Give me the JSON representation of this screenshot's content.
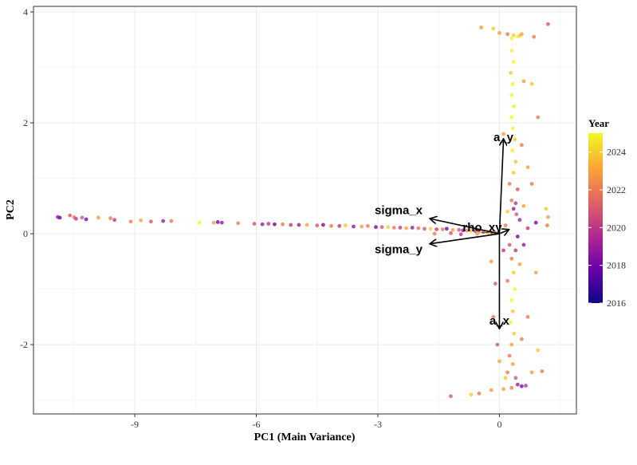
{
  "chart_data": {
    "type": "scatter",
    "title": "",
    "xlabel": "PC1 (Main Variance)",
    "ylabel": "PC2",
    "xlim": [
      -11.5,
      1.9
    ],
    "ylim": [
      -3.25,
      4.1
    ],
    "x_ticks": [
      -9,
      -6,
      -3,
      0
    ],
    "x_tick_labels": [
      "-9",
      "-6",
      "-3",
      "0"
    ],
    "y_ticks": [
      -2,
      0,
      2,
      4
    ],
    "y_tick_labels": [
      "-2",
      "0",
      "2",
      "4"
    ],
    "grid": true,
    "legend": {
      "title": "Year",
      "placement": "right",
      "range": [
        2016,
        2025
      ],
      "ticks": [
        2016,
        2018,
        2020,
        2022,
        2024
      ],
      "tick_labels": [
        "2016",
        "2018",
        "2020",
        "2022",
        "2024"
      ],
      "colors": [
        "#0d0887",
        "#6a00a8",
        "#b12a90",
        "#e16462",
        "#fca636",
        "#f0f921"
      ]
    },
    "loadings": [
      {
        "name": "sigma_x",
        "x": -1.7,
        "y": 0.27
      },
      {
        "name": "sigma_y",
        "x": -1.7,
        "y": -0.18
      },
      {
        "name": "rho_xy",
        "x": 0.22,
        "y": 0.07
      },
      {
        "name": "a_y",
        "x": 0.1,
        "y": 1.7
      },
      {
        "name": "a_x",
        "x": 0.0,
        "y": -1.7
      }
    ],
    "points": {
      "horizontal_band": [
        [
          -10.9,
          0.3,
          2019
        ],
        [
          -10.85,
          0.29,
          2018
        ],
        [
          -10.6,
          0.33,
          2021
        ],
        [
          -10.5,
          0.3,
          2022
        ],
        [
          -10.45,
          0.27,
          2020
        ],
        [
          -10.3,
          0.29,
          2021
        ],
        [
          -10.2,
          0.26,
          2018
        ],
        [
          -9.9,
          0.29,
          2023
        ],
        [
          -9.6,
          0.28,
          2022
        ],
        [
          -9.5,
          0.25,
          2020
        ],
        [
          -9.1,
          0.22,
          2022
        ],
        [
          -8.85,
          0.24,
          2023
        ],
        [
          -8.6,
          0.22,
          2021
        ],
        [
          -8.3,
          0.23,
          2019
        ],
        [
          -8.1,
          0.23,
          2022
        ],
        [
          -7.4,
          0.2,
          2025
        ],
        [
          -7.05,
          0.2,
          2023
        ],
        [
          -6.95,
          0.21,
          2018
        ],
        [
          -6.85,
          0.2,
          2019
        ],
        [
          -6.45,
          0.19,
          2022
        ],
        [
          -6.05,
          0.18,
          2021
        ],
        [
          -5.85,
          0.17,
          2019
        ],
        [
          -5.7,
          0.18,
          2020
        ],
        [
          -5.55,
          0.17,
          2018
        ],
        [
          -5.35,
          0.17,
          2022
        ],
        [
          -5.15,
          0.16,
          2020
        ],
        [
          -4.95,
          0.16,
          2019
        ],
        [
          -4.75,
          0.16,
          2023
        ],
        [
          -4.5,
          0.15,
          2021
        ],
        [
          -4.35,
          0.16,
          2018
        ],
        [
          -4.15,
          0.14,
          2022
        ],
        [
          -3.95,
          0.14,
          2020
        ],
        [
          -3.8,
          0.15,
          2024
        ],
        [
          -3.6,
          0.13,
          2019
        ],
        [
          -3.4,
          0.13,
          2023
        ],
        [
          -3.25,
          0.14,
          2022
        ],
        [
          -3.05,
          0.12,
          2018
        ],
        [
          -2.9,
          0.12,
          2021
        ],
        [
          -2.75,
          0.12,
          2024
        ],
        [
          -2.6,
          0.11,
          2022
        ],
        [
          -2.45,
          0.11,
          2020
        ],
        [
          -2.3,
          0.1,
          2023
        ],
        [
          -2.15,
          0.11,
          2019
        ],
        [
          -2.0,
          0.1,
          2022
        ],
        [
          -1.85,
          0.09,
          2021
        ],
        [
          -1.7,
          0.09,
          2024
        ],
        [
          -1.55,
          0.08,
          2020
        ],
        [
          -1.4,
          0.08,
          2022
        ],
        [
          -1.3,
          0.09,
          2018
        ],
        [
          -1.15,
          0.07,
          2023
        ],
        [
          -1.0,
          0.07,
          2021
        ],
        [
          -0.9,
          0.06,
          2019
        ],
        [
          -0.8,
          0.06,
          2022
        ],
        [
          -0.7,
          0.05,
          2024
        ],
        [
          -0.6,
          0.05,
          2020
        ],
        [
          -0.5,
          0.04,
          2022
        ],
        [
          -0.4,
          0.03,
          2021
        ],
        [
          -0.3,
          0.03,
          2023
        ],
        [
          -0.2,
          0.02,
          2019
        ],
        [
          -0.1,
          0.02,
          2022
        ],
        [
          -1.6,
          0.0,
          2022
        ],
        [
          -1.2,
          0.01,
          2021
        ],
        [
          -0.95,
          -0.01,
          2020
        ],
        [
          -0.55,
          0.0,
          2023
        ],
        [
          -0.25,
          0.0,
          2024
        ]
      ],
      "vertical_top": [
        [
          0.35,
          3.58,
          2024
        ],
        [
          0.45,
          3.55,
          2025
        ],
        [
          0.3,
          3.52,
          2025
        ],
        [
          0.5,
          3.57,
          2024
        ],
        [
          0.55,
          3.6,
          2023
        ],
        [
          0.2,
          3.6,
          2022
        ],
        [
          0.0,
          3.62,
          2023
        ],
        [
          -0.15,
          3.7,
          2024
        ],
        [
          -0.45,
          3.72,
          2023
        ],
        [
          1.2,
          3.78,
          2021
        ],
        [
          0.85,
          3.55,
          2022
        ],
        [
          0.3,
          3.3,
          2025
        ],
        [
          0.35,
          3.1,
          2025
        ],
        [
          0.28,
          2.9,
          2024
        ],
        [
          0.33,
          2.7,
          2025
        ],
        [
          0.3,
          2.5,
          2025
        ],
        [
          0.6,
          2.75,
          2023
        ],
        [
          0.8,
          2.7,
          2024
        ],
        [
          0.36,
          2.3,
          2025
        ],
        [
          0.3,
          2.1,
          2025
        ],
        [
          0.33,
          1.9,
          2025
        ],
        [
          0.38,
          1.7,
          2024
        ],
        [
          0.32,
          1.5,
          2025
        ],
        [
          0.4,
          1.3,
          2024
        ],
        [
          0.35,
          1.1,
          2024
        ],
        [
          0.1,
          1.8,
          2023
        ],
        [
          0.55,
          1.6,
          2022
        ],
        [
          0.95,
          2.1,
          2022
        ],
        [
          0.7,
          1.2,
          2023
        ],
        [
          0.25,
          0.9,
          2022
        ],
        [
          0.45,
          0.8,
          2021
        ],
        [
          0.3,
          0.6,
          2022
        ],
        [
          0.4,
          0.55,
          2020
        ],
        [
          0.35,
          0.45,
          2019
        ],
        [
          0.42,
          0.35,
          2021
        ],
        [
          0.6,
          0.5,
          2023
        ],
        [
          0.2,
          0.4,
          2024
        ],
        [
          0.8,
          0.9,
          2022
        ],
        [
          1.15,
          0.45,
          2024
        ],
        [
          1.2,
          0.3,
          2023
        ],
        [
          1.18,
          0.15,
          2022
        ],
        [
          0.9,
          0.2,
          2018
        ],
        [
          0.7,
          0.1,
          2020
        ],
        [
          0.5,
          0.25,
          2019
        ],
        [
          0.15,
          0.15,
          2022
        ]
      ],
      "vertical_bottom": [
        [
          0.25,
          -0.2,
          2021
        ],
        [
          0.4,
          -0.3,
          2020
        ],
        [
          0.3,
          -0.45,
          2022
        ],
        [
          0.5,
          -0.55,
          2023
        ],
        [
          0.35,
          -0.7,
          2024
        ],
        [
          0.2,
          -0.85,
          2022
        ],
        [
          0.38,
          -1.0,
          2025
        ],
        [
          0.3,
          -1.2,
          2025
        ],
        [
          0.33,
          -1.4,
          2024
        ],
        [
          0.28,
          -1.6,
          2025
        ],
        [
          0.36,
          -1.8,
          2024
        ],
        [
          0.3,
          -2.0,
          2023
        ],
        [
          0.25,
          -2.2,
          2022
        ],
        [
          0.33,
          -2.35,
          2023
        ],
        [
          0.2,
          -2.5,
          2022
        ],
        [
          0.4,
          -2.6,
          2021
        ],
        [
          0.45,
          -2.72,
          2019
        ],
        [
          0.55,
          -2.75,
          2018
        ],
        [
          0.3,
          -2.78,
          2022
        ],
        [
          0.1,
          -2.8,
          2023
        ],
        [
          -0.2,
          -2.82,
          2023
        ],
        [
          -0.5,
          -2.88,
          2022
        ],
        [
          -0.7,
          -2.9,
          2024
        ],
        [
          -1.2,
          -2.93,
          2021
        ],
        [
          0.65,
          -2.74,
          2020
        ],
        [
          0.8,
          -2.5,
          2023
        ],
        [
          1.05,
          -2.48,
          2022
        ],
        [
          0.95,
          -2.1,
          2024
        ],
        [
          0.7,
          -1.5,
          2022
        ],
        [
          0.9,
          -0.7,
          2023
        ],
        [
          -0.15,
          -1.5,
          2022
        ],
        [
          -0.1,
          -0.9,
          2021
        ],
        [
          -0.2,
          -0.5,
          2023
        ],
        [
          0.1,
          -0.3,
          2020
        ],
        [
          0.6,
          -0.2,
          2019
        ],
        [
          0.45,
          -0.05,
          2018
        ],
        [
          0.15,
          -2.6,
          2024
        ],
        [
          0.0,
          -2.3,
          2023
        ],
        [
          0.55,
          -1.9,
          2022
        ],
        [
          -0.05,
          -2.0,
          2021
        ]
      ]
    }
  }
}
